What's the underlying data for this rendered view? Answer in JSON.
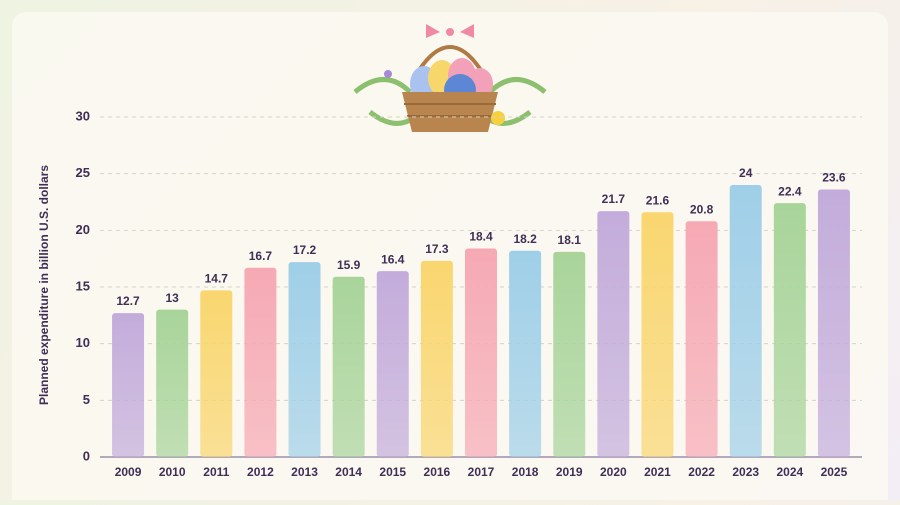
{
  "chart_data": {
    "type": "bar",
    "y_label": "Planned expenditure in billion U.S. dollars",
    "categories": [
      "2009",
      "2010",
      "2011",
      "2012",
      "2013",
      "2014",
      "2015",
      "2016",
      "2017",
      "2018",
      "2019",
      "2020",
      "2021",
      "2022",
      "2023",
      "2024",
      "2025"
    ],
    "values": [
      12.7,
      13,
      14.7,
      16.7,
      17.2,
      15.9,
      16.4,
      17.3,
      18.4,
      18.2,
      18.1,
      21.7,
      21.6,
      20.8,
      24,
      22.4,
      23.6
    ],
    "colors": [
      "#c3acdb",
      "#a8d49a",
      "#f9d66f",
      "#f6a9b4",
      "#9fcfe8",
      "#a8d49a",
      "#c3acdb",
      "#f9d66f",
      "#f6a9b4",
      "#9fcfe8",
      "#a8d49a",
      "#c3acdb",
      "#f9d66f",
      "#f6a9b4",
      "#9fcfe8",
      "#a8d49a",
      "#c3acdb"
    ],
    "ylim": [
      0,
      30
    ],
    "yticks": [
      0,
      5,
      10,
      15,
      20,
      25,
      30
    ],
    "grid": true
  }
}
